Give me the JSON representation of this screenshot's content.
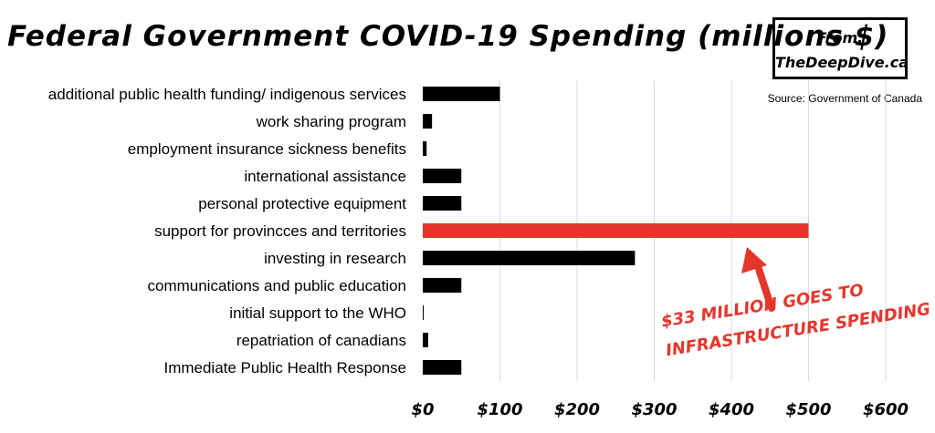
{
  "header": {
    "title": "Federal Government COVID-19 Spending (millions $)",
    "from_label": "From:",
    "from_site": "TheDeepDive.ca",
    "source": "Source: Government of Canada"
  },
  "annotation": {
    "line1": "$33 MILLION GOES TO",
    "line2": "INFRASTRUCTURE SPENDING",
    "color": "#e5362b"
  },
  "chart_data": {
    "type": "bar",
    "orientation": "horizontal",
    "title": "Federal Government COVID-19 Spending (millions $)",
    "categories": [
      "additional public health funding/ indigenous services",
      "work sharing program",
      "employment insurance sickness benefits",
      "international assistance",
      "personal protective equipment",
      "support for provincces and territories",
      "investing in research",
      "communications and public education",
      "initial support to the WHO",
      "repatriation of canadians",
      "Immediate Public Health Response"
    ],
    "values": [
      100,
      12,
      5,
      50,
      50,
      500,
      275,
      50,
      1,
      7,
      50
    ],
    "highlight_index": 5,
    "bar_color": "#000000",
    "highlight_color": "#e5362b",
    "xlim": [
      0,
      600
    ],
    "xticks": [
      0,
      100,
      200,
      300,
      400,
      500,
      600
    ],
    "tick_labels": [
      "$0",
      "$100",
      "$200",
      "$300",
      "$400",
      "$500",
      "$600"
    ],
    "grid": true,
    "xlabel": "",
    "ylabel": ""
  }
}
